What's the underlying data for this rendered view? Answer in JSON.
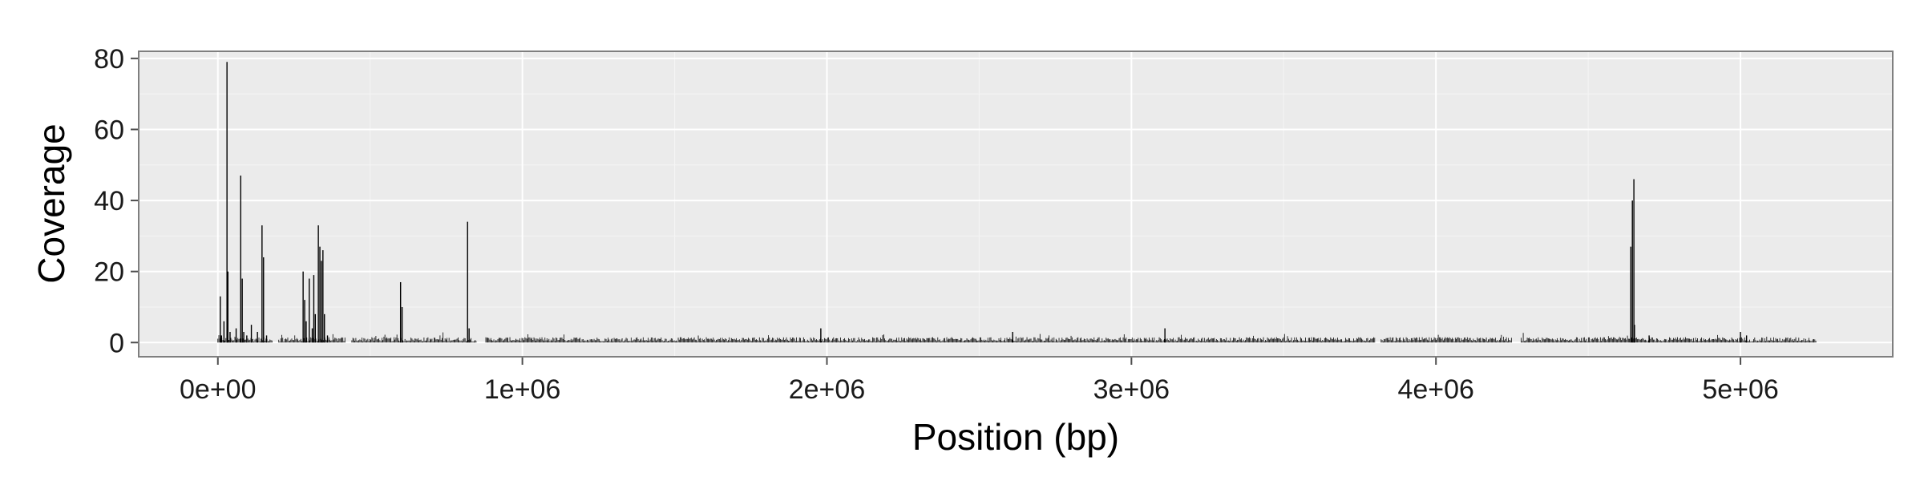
{
  "chart_data": {
    "type": "bar",
    "title": "",
    "xlabel": "Position (bp)",
    "ylabel": "Coverage",
    "xlim": [
      -260000,
      5500000
    ],
    "ylim": [
      -4,
      82
    ],
    "x_ticks": [
      {
        "value": 0,
        "label": "0e+00"
      },
      {
        "value": 1000000,
        "label": "1e+06"
      },
      {
        "value": 2000000,
        "label": "2e+06"
      },
      {
        "value": 3000000,
        "label": "3e+06"
      },
      {
        "value": 4000000,
        "label": "4e+06"
      },
      {
        "value": 5000000,
        "label": "5e+06"
      }
    ],
    "y_ticks": [
      {
        "value": 0,
        "label": "0"
      },
      {
        "value": 20,
        "label": "20"
      },
      {
        "value": 40,
        "label": "40"
      },
      {
        "value": 60,
        "label": "60"
      },
      {
        "value": 80,
        "label": "80"
      }
    ],
    "grid": true,
    "background": "#ebebeb",
    "bar_color": "#000000",
    "baseline": {
      "segments": [
        [
          0,
          180000
        ],
        [
          200000,
          420000
        ],
        [
          440000,
          850000
        ],
        [
          880000,
          3800000
        ],
        [
          3820000,
          4250000
        ],
        [
          4280000,
          5250000
        ]
      ],
      "typical_coverage": [
        0.3,
        1.5
      ]
    },
    "series": [
      {
        "x": [
          8000,
          12000,
          20000,
          30000,
          33000,
          40000,
          60000,
          75000,
          80000,
          85000,
          95000,
          110000,
          130000,
          145000,
          150000,
          160000,
          280000,
          285000,
          290000,
          300000,
          310000,
          315000,
          320000,
          330000,
          335000,
          340000,
          345000,
          350000,
          360000,
          600000,
          605000,
          820000,
          825000,
          1980000,
          2610000,
          3110000,
          4640000,
          4645000,
          4650000,
          4652000,
          4700000,
          5000000,
          5020000
        ],
        "values": [
          13,
          2,
          6,
          79,
          20,
          3,
          4,
          47,
          18,
          3,
          2,
          5,
          3,
          33,
          24,
          2,
          20,
          12,
          6,
          18,
          4,
          19,
          8,
          33,
          27,
          23,
          26,
          8,
          2,
          17,
          10,
          34,
          4,
          4,
          3,
          4,
          27,
          40,
          46,
          5,
          2,
          3,
          2
        ]
      }
    ]
  }
}
